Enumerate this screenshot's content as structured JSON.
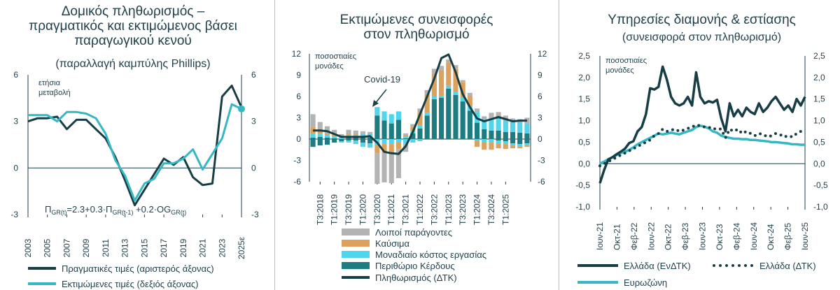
{
  "chart_data": [
    {
      "type": "line",
      "title": "Δομικός πληθωρισμός – πραγματικός και εκτιμώμενος βάσει παραγωγικού κενού",
      "subtitle": "(παραλλαγή καμπύλης Phillips)",
      "unit_label": "ετήσια μεταβολή",
      "formula": {
        "p1": "Π",
        "s1": "GR(t)",
        "p2": "=2.3+0.3·Π",
        "s2": "GR(t-1)",
        "p3": " +0.2·OG",
        "s3": "GR(t)"
      },
      "x": [
        2003,
        2004,
        2005,
        2006,
        2007,
        2008,
        2009,
        2010,
        2011,
        2012,
        2013,
        2014,
        2015,
        2016,
        2017,
        2018,
        2019,
        2020,
        2021,
        2022,
        2023,
        2024,
        2025
      ],
      "x_tick_labels": [
        "2003",
        "2005",
        "2007",
        "2009",
        "2011",
        "2013",
        "2015",
        "2017",
        "2019",
        "2021",
        "2023",
        "2025ε"
      ],
      "ylim": [
        -3,
        6
      ],
      "y_ticks_left": [
        "-3",
        "0",
        "3",
        "6"
      ],
      "y_ticks_right": [
        "-3",
        "0",
        "3",
        "6"
      ],
      "series": [
        {
          "name": "Πραγματικές τιμές (αριστερός άξονας)",
          "axis": "left",
          "color": "#173d45",
          "values": [
            3.0,
            3.2,
            3.2,
            3.3,
            2.5,
            3.1,
            3.1,
            2.5,
            1.9,
            0.7,
            -0.8,
            -2.4,
            -1.4,
            -0.4,
            0.6,
            0.2,
            0.7,
            -0.6,
            -1.1,
            -1.0,
            4.6,
            5.3,
            3.9
          ]
        },
        {
          "name": "Εκτιμώμενες τιμές (δεξιός άξονας)",
          "axis": "right",
          "color": "#35b8c4",
          "values": [
            3.4,
            3.4,
            3.4,
            3.0,
            3.6,
            3.6,
            3.5,
            3.2,
            2.2,
            0.5,
            -0.5,
            -2.1,
            -1.0,
            -0.7,
            0.3,
            0.3,
            0.6,
            1.2,
            -0.1,
            0.9,
            1.9,
            4.1,
            3.8
          ]
        }
      ]
    },
    {
      "type": "bar",
      "title": "Εκτιμώμενες συνεισφορές στον πληθωρισμό",
      "unit_label": "ποσοστιαίες μονάδες",
      "annotation": "Covid-19",
      "ylim": [
        -6,
        12
      ],
      "y_ticks": [
        "-6",
        "-3",
        "0",
        "3",
        "6",
        "9",
        "12"
      ],
      "x_tick_labels": [
        "T3:2018",
        "T1:2019",
        "T3:2019",
        "T1:2020",
        "T3:2020",
        "T1:2021",
        "T3:2021",
        "T1:2022",
        "T3:2022",
        "T1:2023",
        "T3:2023",
        "T1:2024",
        "T3:2024",
        "T1:2025"
      ],
      "stack_series": [
        {
          "name": "Περιθώριο Κέρδους",
          "color": "#1e7b80",
          "values": [
            0.2,
            0.3,
            0.2,
            0.1,
            0,
            0.2,
            0.2,
            0.3,
            0.2,
            3.3,
            2.6,
            2.2,
            2.7,
            0.1,
            0.8,
            1.5,
            3.3,
            5.6,
            5.8,
            7.1,
            6.2,
            5.3,
            4.0,
            2.3,
            1.4,
            1.2,
            1.2,
            1.0,
            1.0,
            0.9,
            0.8
          ]
        },
        {
          "name": "Μοναδιαίο κόστος εργασίας",
          "color": "#50d6ec",
          "values": [
            0.5,
            0.4,
            0.3,
            0.3,
            0.4,
            0.4,
            0.4,
            0.5,
            0.6,
            1.2,
            1.3,
            1.3,
            1.2,
            0.3,
            0.3,
            0.4,
            0.4,
            0.4,
            0.3,
            0.4,
            0.4,
            0.5,
            0.6,
            1.5,
            1.4,
            1.5,
            1.8,
            1.6,
            1.6,
            1.5,
            1.4
          ]
        },
        {
          "name": "Καύσιμα",
          "color": "#dca25d",
          "values": [
            1.0,
            0.5,
            0.3,
            0.2,
            0,
            0.2,
            0.2,
            0,
            0,
            0,
            0,
            0,
            0,
            0.2,
            0.6,
            1.8,
            2.6,
            3.2,
            3.6,
            3.3,
            3.3,
            2.2,
            1.5,
            0,
            0,
            0,
            0,
            0,
            0,
            0,
            0
          ]
        },
        {
          "name": "Λοιποί παράγοντες",
          "color": "#b3b3b3",
          "values": [
            1.8,
            1.2,
            1.0,
            0.7,
            0.3,
            0.5,
            0.4,
            0.3,
            0.2,
            0,
            0,
            0,
            0,
            0.2,
            0.4,
            0.6,
            0.6,
            0.7,
            0.6,
            0.4,
            0.5,
            0.3,
            0.4,
            0.5,
            0.4,
            1.0,
            0.8,
            0.7,
            0.3,
            0.4,
            0.8
          ]
        }
      ],
      "neg_series": [
        {
          "name": "Περιθώριο Κέρδους",
          "values": [
            -1.1,
            -0.9,
            -0.8,
            -0.5,
            -0.3,
            -0.2,
            -0.2,
            -0.5,
            -0.6,
            0,
            0,
            0,
            0,
            0,
            0,
            0,
            0,
            0,
            0,
            0,
            0,
            0,
            0,
            0,
            0,
            0,
            -0.2,
            -0.3,
            -0.6,
            -0.7,
            -0.6
          ]
        },
        {
          "name": "Μοναδιαίο κόστος εργασίας",
          "values": [
            0,
            0,
            0,
            0,
            -0.2,
            -0.3,
            -0.5,
            -0.6,
            -0.6,
            -0.8,
            -0.7,
            -0.7,
            -0.4,
            -0.6,
            -0.5,
            -0.3,
            0,
            0,
            0,
            0,
            0,
            0,
            0,
            -0.3,
            -0.4,
            -0.5,
            -0.4,
            -0.4,
            -0.3,
            -0.3,
            -0.2
          ]
        },
        {
          "name": "Καύσιμα",
          "values": [
            0,
            0,
            0,
            0,
            0,
            0,
            0,
            0,
            0,
            -1.2,
            -1.1,
            -1.3,
            -1.0,
            0,
            0,
            0,
            0,
            0,
            0,
            0,
            0,
            0,
            0,
            -0.8,
            -1.1,
            -1.0,
            -0.7,
            -0.7,
            -0.4,
            -0.3,
            -0.3
          ]
        },
        {
          "name": "Λοιποί παράγοντες",
          "values": [
            0,
            0,
            0,
            0,
            0,
            0,
            0,
            0,
            0,
            -4.3,
            -4.3,
            -4.2,
            -4.1,
            -1.2,
            0,
            0,
            0,
            0,
            0,
            0,
            0,
            0,
            0,
            0,
            0,
            0,
            0,
            0,
            0,
            0,
            0
          ]
        }
      ],
      "line": {
        "name": "Πληθωρισμός (ΔΤΚ)",
        "color": "#173d45",
        "values": [
          1.2,
          1.2,
          1.1,
          0.7,
          0.3,
          0.3,
          0.3,
          0.3,
          0.4,
          -0.5,
          -1.8,
          -2.0,
          -2.1,
          -1.0,
          1.0,
          3.5,
          6.0,
          8.5,
          11.4,
          11.9,
          9.4,
          6.3,
          4.5,
          2.9,
          2.5,
          2.8,
          3.1,
          2.8,
          2.5,
          2.6,
          2.6
        ]
      }
    },
    {
      "type": "line",
      "title": "Υπηρεσίες διαμονής & εστίασης",
      "subtitle": "(συνεισφορά στον πληθωρισμό)",
      "unit_label": "ποσοστιαίες μονάδες",
      "ylim": [
        -1.0,
        2.5
      ],
      "y_ticks": [
        "-1,0",
        "-0,5",
        "0,0",
        "0,5",
        "1,0",
        "1,5",
        "2,0",
        "2,5"
      ],
      "x_tick_labels": [
        "Ιουν-21",
        "Οκτ-21",
        "Φεβ-22",
        "Ιουν-22",
        "Οκτ-22",
        "Φεβ-23",
        "Ιουν-23",
        "Οκτ-23",
        "Φεβ-24",
        "Ιουν-24",
        "Οκτ-24",
        "Φεβ-25",
        "Ιουν-25"
      ],
      "series": [
        {
          "name": "Ελλάδα (ΕνΔΤΚ)",
          "style": "solid",
          "color": "#173d45",
          "values": [
            -0.45,
            -0.15,
            0.1,
            0.15,
            0.22,
            0.28,
            0.35,
            0.48,
            0.52,
            0.75,
            0.85,
            1.15,
            1.75,
            1.72,
            1.78,
            2.25,
            1.95,
            1.55,
            1.4,
            1.35,
            1.4,
            1.55,
            1.35,
            2.12,
            1.55,
            1.4,
            1.45,
            1.42,
            1.48,
            1.05,
            0.75,
            1.4,
            1.1,
            1.25,
            1.1,
            1.3,
            1.2,
            1.15,
            1.4,
            1.2,
            1.3,
            1.45,
            1.55,
            1.4,
            1.25,
            1.35,
            1.2,
            1.5,
            1.35,
            1.55
          ]
        },
        {
          "name": "Ελλάδα (ΔΤΚ)",
          "style": "dotted",
          "color": "#173d45",
          "values": [
            -0.05,
            0.0,
            0.05,
            0.1,
            0.15,
            0.2,
            0.25,
            0.3,
            0.35,
            0.4,
            0.45,
            0.5,
            0.55,
            0.65,
            0.7,
            0.8,
            0.75,
            0.78,
            0.8,
            0.75,
            0.78,
            0.82,
            0.85,
            0.9,
            0.88,
            0.85,
            0.85,
            0.8,
            0.82,
            0.8,
            0.6,
            0.8,
            0.75,
            0.8,
            0.7,
            0.75,
            0.7,
            0.65,
            0.7,
            0.68,
            0.62,
            0.65,
            0.7,
            0.68,
            0.62,
            0.65,
            0.62,
            0.7,
            0.75,
            0.8
          ]
        },
        {
          "name": "Ευρωζώνη",
          "style": "solid",
          "color": "#35b8c4",
          "values": [
            0.0,
            0.05,
            0.1,
            0.15,
            0.2,
            0.25,
            0.28,
            0.32,
            0.38,
            0.45,
            0.5,
            0.55,
            0.6,
            0.65,
            0.7,
            0.68,
            0.7,
            0.72,
            0.7,
            0.68,
            0.72,
            0.75,
            0.78,
            0.85,
            0.88,
            0.86,
            0.82,
            0.75,
            0.72,
            0.65,
            0.62,
            0.6,
            0.58,
            0.58,
            0.57,
            0.57,
            0.55,
            0.55,
            0.54,
            0.53,
            0.52,
            0.5,
            0.5,
            0.49,
            0.48,
            0.47,
            0.45,
            0.45,
            0.44,
            0.44
          ]
        }
      ]
    }
  ]
}
